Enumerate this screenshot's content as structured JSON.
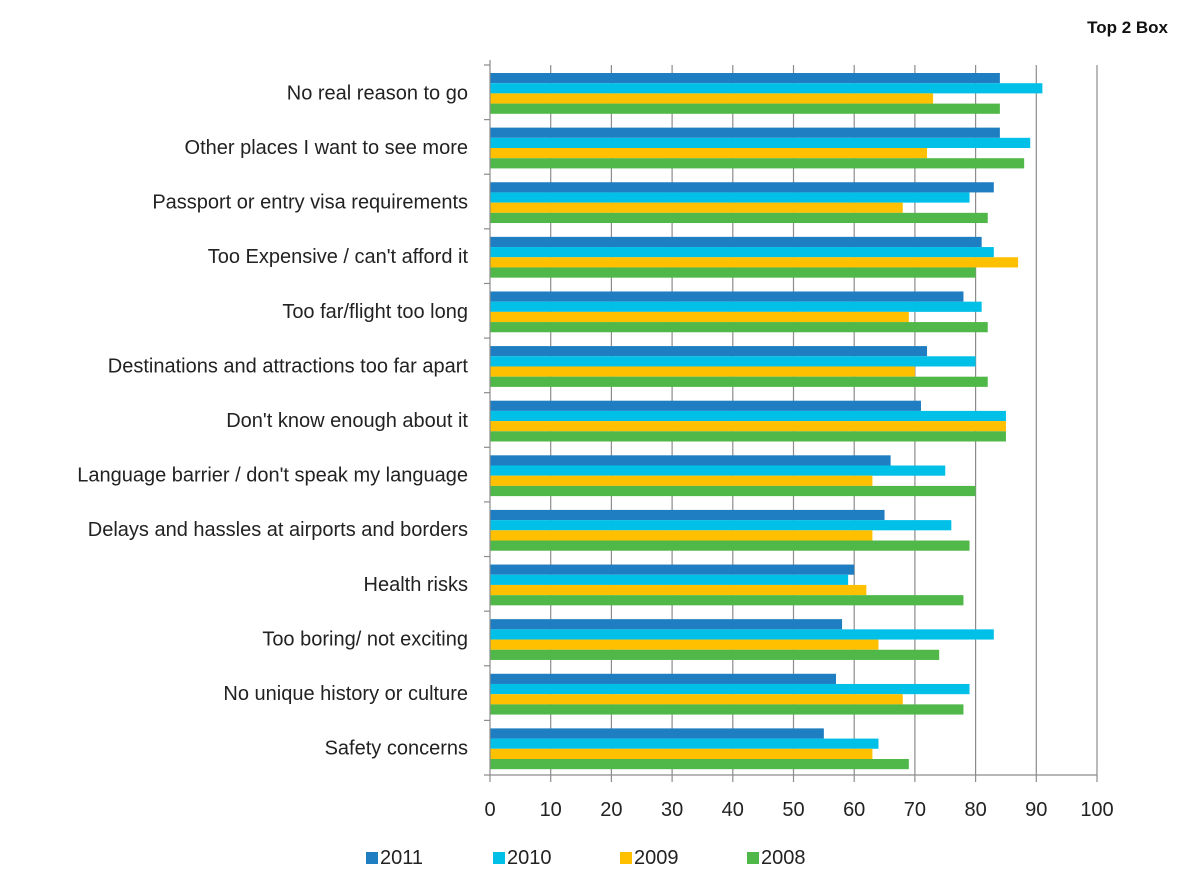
{
  "chart_data": {
    "type": "bar",
    "orientation": "horizontal",
    "title": "",
    "subtitle": "Top 2 Box",
    "xlabel": "",
    "ylabel": "",
    "xlim": [
      0,
      100
    ],
    "x_ticks": [
      0,
      10,
      20,
      30,
      40,
      50,
      60,
      70,
      80,
      90,
      100
    ],
    "grid": "vertical major gridlines",
    "legend_position": "bottom",
    "categories": [
      "No real reason to go",
      "Other places I want to see more",
      "Passport or entry visa requirements",
      "Too Expensive / can't afford it",
      "Too far/flight too long",
      "Destinations and attractions too far apart",
      "Don't know enough about it",
      "Language barrier / don't speak my language",
      "Delays and hassles at airports and borders",
      "Health risks",
      "Too boring/ not exciting",
      "No unique history or culture",
      "Safety concerns"
    ],
    "series": [
      {
        "name": "2011",
        "color": "#1F7EC1",
        "values": [
          84,
          84,
          83,
          81,
          78,
          72,
          71,
          66,
          65,
          60,
          58,
          57,
          55
        ]
      },
      {
        "name": "2010",
        "color": "#00C0E8",
        "values": [
          91,
          89,
          79,
          83,
          81,
          80,
          85,
          75,
          76,
          59,
          83,
          79,
          64
        ]
      },
      {
        "name": "2009",
        "color": "#FFC000",
        "values": [
          73,
          72,
          68,
          87,
          69,
          70,
          85,
          63,
          63,
          62,
          64,
          68,
          63
        ]
      },
      {
        "name": "2008",
        "color": "#4FB848",
        "values": [
          84,
          88,
          82,
          80,
          82,
          82,
          85,
          80,
          79,
          78,
          74,
          78,
          69
        ]
      }
    ]
  }
}
